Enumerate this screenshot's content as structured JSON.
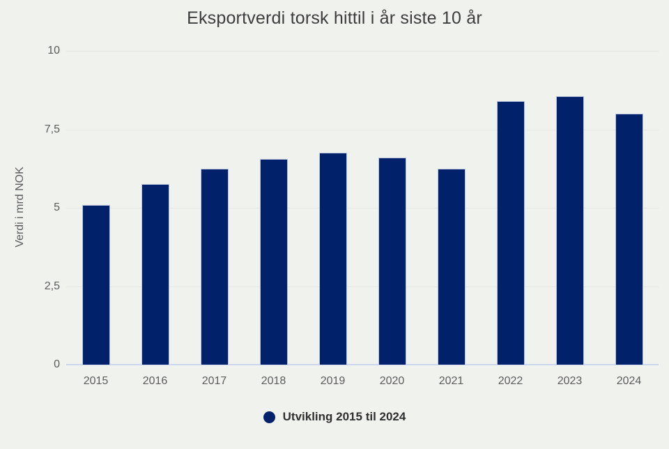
{
  "title": "Eksportverdi torsk hittil i år siste 10 år",
  "colors": {
    "background": "#f0f2ee",
    "bar_fill": "#01216b",
    "bar_border": "#b9c3de",
    "gridline": "#e4e6e1",
    "x_axis_line": "#ccd6ee",
    "title_text": "#3d3d3d",
    "axis_text": "#5c5c5c",
    "legend_text": "#2f2f2f"
  },
  "legend": {
    "label": "Utvikling 2015 til 2024",
    "position": "bottom"
  },
  "chart_data": {
    "type": "bar",
    "title": "Eksportverdi torsk hittil i år siste 10 år",
    "categories": [
      "2015",
      "2016",
      "2017",
      "2018",
      "2019",
      "2020",
      "2021",
      "2022",
      "2023",
      "2024"
    ],
    "values": [
      5.1,
      5.75,
      6.25,
      6.55,
      6.75,
      6.6,
      6.25,
      8.4,
      8.55,
      8.0
    ],
    "xlabel": "",
    "ylabel": "Verdi i mrd NOK",
    "ylim": [
      0,
      10
    ],
    "yticks": [
      {
        "value": 0,
        "label": "0"
      },
      {
        "value": 2.5,
        "label": "2,5"
      },
      {
        "value": 5,
        "label": "5"
      },
      {
        "value": 7.5,
        "label": "7,5"
      },
      {
        "value": 10,
        "label": "10"
      }
    ],
    "grid": true,
    "legend_entries": [
      "Utvikling 2015 til 2024"
    ]
  }
}
